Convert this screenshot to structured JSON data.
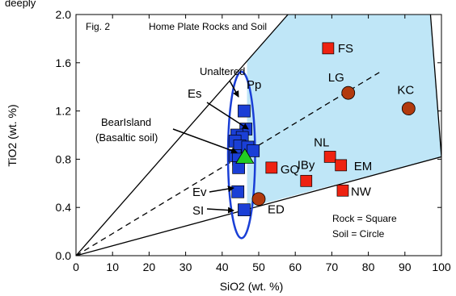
{
  "chart_data": {
    "type": "scatter",
    "title": "Home Plate Rocks and Soil",
    "figure_label": "Fig. 2",
    "top_cut_text": "deeply",
    "xlabel": "SiO2  (wt. %)",
    "ylabel": "TiO2  (wt. %)",
    "xlim": [
      0,
      100
    ],
    "ylim": [
      0.0,
      2.0
    ],
    "x_ticks": [
      0,
      10,
      20,
      30,
      40,
      50,
      60,
      70,
      80,
      90,
      100
    ],
    "y_ticks": [
      0.0,
      0.4,
      0.8,
      1.2,
      1.6,
      2.0
    ],
    "x_tick_labels": [
      "0",
      "10",
      "20",
      "30",
      "40",
      "50",
      "60",
      "70",
      "80",
      "90",
      "100"
    ],
    "y_tick_labels": [
      "0.0",
      "0.4",
      "0.8",
      "1.2",
      "1.6",
      "2.0"
    ],
    "grid": false,
    "legend_text": [
      "Rock = Square",
      "Soil = Circle"
    ],
    "colors": {
      "unaltered_rock": "#1a3fd6",
      "altered_rock": "#ee2211",
      "altered_soil": "#b23a0e",
      "basaltic_soil": "#22cc22",
      "field": "#bfe6f7",
      "ellipse": "#1a3fd6"
    },
    "lines": [
      {
        "style": "solid",
        "from": [
          0,
          0
        ],
        "to": [
          58,
          2.0
        ]
      },
      {
        "style": "dashed",
        "from": [
          0,
          0
        ],
        "to": [
          83,
          1.52
        ]
      },
      {
        "style": "solid",
        "from": [
          0,
          0
        ],
        "to": [
          100,
          0.82
        ]
      },
      {
        "style": "solid",
        "from": [
          97,
          2.0
        ],
        "to": [
          100,
          0.82
        ]
      }
    ],
    "field_polygon": [
      [
        46.8,
        0.397
      ],
      [
        100,
        0.82
      ],
      [
        97,
        2.0
      ],
      [
        58,
        2.0
      ],
      [
        46.8,
        1.614
      ]
    ],
    "ellipse": {
      "cx": 45.3,
      "cy": 0.835,
      "rx": 3.7,
      "ry": 0.69
    },
    "unaltered_rocks": [
      {
        "x": 46.0,
        "y": 1.2
      },
      {
        "x": 46.5,
        "y": 1.05
      },
      {
        "x": 44.0,
        "y": 1.0
      },
      {
        "x": 45.5,
        "y": 0.98
      },
      {
        "x": 43.5,
        "y": 0.95
      },
      {
        "x": 44.8,
        "y": 0.91
      },
      {
        "x": 47.0,
        "y": 0.9
      },
      {
        "x": 48.5,
        "y": 0.87
      },
      {
        "x": 43.5,
        "y": 0.83
      },
      {
        "x": 44.5,
        "y": 0.8
      },
      {
        "x": 44.5,
        "y": 0.73
      },
      {
        "x": 44.3,
        "y": 0.53
      },
      {
        "x": 46.0,
        "y": 0.38
      }
    ],
    "basaltic_soil": [
      {
        "x": 46.2,
        "y": 0.82
      }
    ],
    "altered_rocks": [
      {
        "label": "FS",
        "x": 69.0,
        "y": 1.72
      },
      {
        "label": "GQ",
        "x": 53.5,
        "y": 0.73
      },
      {
        "label": "NL",
        "x": 69.5,
        "y": 0.82
      },
      {
        "label": "EM",
        "x": 72.5,
        "y": 0.75
      },
      {
        "label": "IBy",
        "x": 63.0,
        "y": 0.62
      },
      {
        "label": "NW",
        "x": 73.0,
        "y": 0.54
      }
    ],
    "altered_soils": [
      {
        "label": "LG",
        "x": 74.5,
        "y": 1.35
      },
      {
        "label": "KC",
        "x": 91.0,
        "y": 1.22
      },
      {
        "label": "ED",
        "x": 50.0,
        "y": 0.47
      }
    ],
    "annotations": [
      {
        "text": "Unaltered"
      },
      {
        "text": "Pp"
      },
      {
        "text": "Es"
      },
      {
        "text": "BearIsland"
      },
      {
        "text": "(Basaltic soil)"
      },
      {
        "text": "Ev"
      },
      {
        "text": "SI"
      }
    ]
  }
}
